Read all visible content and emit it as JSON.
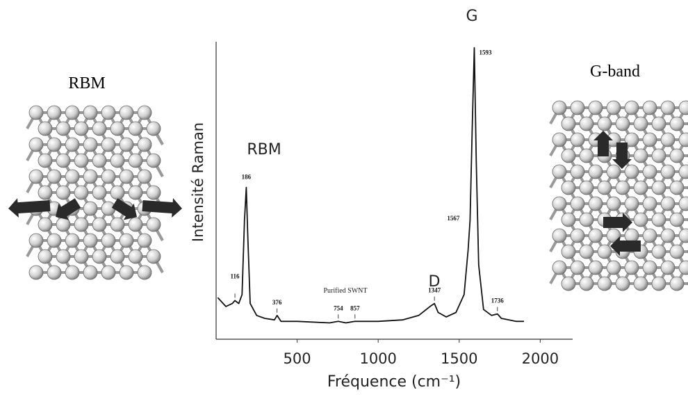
{
  "chart_data": {
    "type": "line",
    "x_label": "Fréquence (cm⁻¹)",
    "y_label": "Intensité Raman",
    "x": [
      10,
      60,
      100,
      116,
      140,
      160,
      175,
      186,
      195,
      210,
      250,
      300,
      360,
      376,
      400,
      500,
      700,
      754,
      800,
      857,
      1000,
      1150,
      1250,
      1320,
      1347,
      1370,
      1420,
      1480,
      1530,
      1555,
      1567,
      1580,
      1593,
      1605,
      1620,
      1650,
      1700,
      1736,
      1760,
      1850,
      1900
    ],
    "values": [
      14,
      11,
      12,
      13,
      12,
      15,
      40,
      51,
      35,
      12,
      8,
      7,
      6.5,
      8,
      6,
      6,
      5.5,
      6,
      5.5,
      6,
      6,
      6.5,
      8,
      11,
      12,
      9,
      7.5,
      9,
      15,
      30,
      40,
      70,
      98,
      60,
      25,
      10,
      8,
      8.5,
      7,
      6,
      6
    ],
    "color": "#111111",
    "xlim": [
      0,
      2200
    ],
    "xticks": [
      500,
      1000,
      1500,
      2000
    ],
    "ylim": [
      0,
      100
    ],
    "peak_labels": [
      116,
      186,
      376,
      754,
      857,
      1347,
      1567,
      1593,
      1736
    ],
    "annotations": [
      "RBM",
      "Purified SWNT",
      "D",
      "G"
    ],
    "panel_titles": [
      "RBM",
      "G-band"
    ]
  }
}
